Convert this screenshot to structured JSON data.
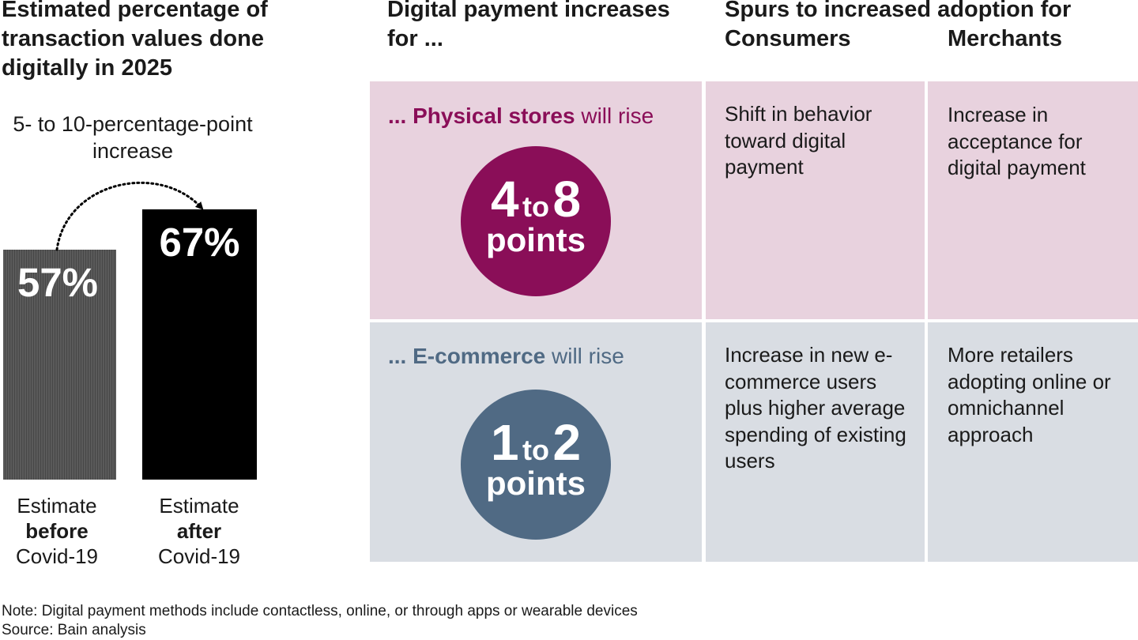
{
  "left": {
    "title": "Estimated percentage of transaction values done digitally in 2025",
    "subtitle": "5- to 10-percentage-point increase"
  },
  "chart_data": {
    "type": "bar",
    "categories": [
      "Estimate before Covid-19",
      "Estimate after Covid-19"
    ],
    "values": [
      57,
      67
    ],
    "value_labels": [
      "57%",
      "67%"
    ],
    "annotation": "5- to 10-percentage-point increase",
    "colors": [
      "#555555",
      "#000000"
    ]
  },
  "bars": {
    "before": {
      "value_label": "57%",
      "cat_pre": "Estimate",
      "cat_bold": "before",
      "cat_post": "Covid-19"
    },
    "after": {
      "value_label": "67%",
      "cat_pre": "Estimate",
      "cat_bold": "after",
      "cat_post": "Covid-19"
    }
  },
  "grid": {
    "title": "Digital payment increases for ...",
    "spurs_title": "Spurs to increased adoption for",
    "col_consumers": "Consumers",
    "col_merchants": "Merchants",
    "rows": [
      {
        "prefix": "... ",
        "bold": "Physical stores",
        "suffix": " will rise",
        "from": "4",
        "to_word": "to",
        "to": "8",
        "unit": "points",
        "consumers": "Shift in behavior toward digital payment",
        "merchants": "Increase in acceptance for digital payment",
        "accent": "#8a0e58",
        "bg": "#e8d2de"
      },
      {
        "prefix": "... ",
        "bold": "E-commerce",
        "suffix": " will rise",
        "from": "1",
        "to_word": "to",
        "to": "2",
        "unit": "points",
        "consumers": "Increase in new e-commerce users plus higher average spending of existing users",
        "merchants": "More retailers adopting online or omnichannel approach",
        "accent": "#506a84",
        "bg": "#d9dde3"
      }
    ]
  },
  "footer": {
    "note": "Note: Digital payment methods include contactless, online, or through apps or wearable devices",
    "source": "Source: Bain analysis"
  }
}
